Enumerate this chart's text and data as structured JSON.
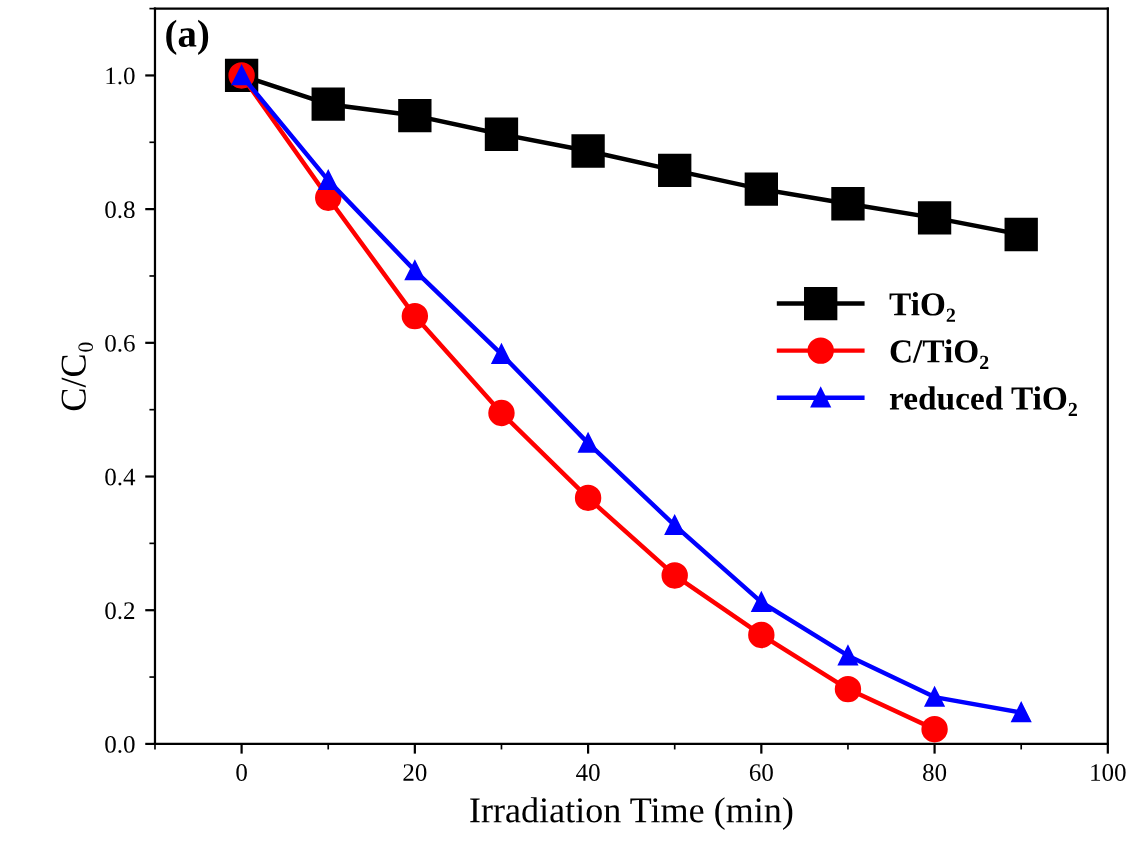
{
  "chart_data": {
    "type": "line",
    "xlabel": "Irradiation Time (min)",
    "ylabel": "C/C₀",
    "annotations": [
      "(a)"
    ],
    "xlim": [
      -10,
      100
    ],
    "ylim": [
      0,
      1.1
    ],
    "xticks": [
      0,
      20,
      40,
      60,
      80,
      100
    ],
    "yticks": [
      {
        "value": 0,
        "label": "0.0"
      },
      {
        "value": 0.2,
        "label": "0.2"
      },
      {
        "value": 0.4,
        "label": "0.4"
      },
      {
        "value": 0.6,
        "label": "0.6"
      },
      {
        "value": 0.8,
        "label": "0.8"
      },
      {
        "value": 1.0,
        "label": "1.0"
      }
    ],
    "grid": false,
    "legend": "right",
    "line_style": "solid",
    "series": [
      {
        "name": "TiO₂",
        "color": "#000000",
        "marker": "square",
        "x": [
          0,
          10,
          20,
          30,
          40,
          50,
          60,
          70,
          80,
          90
        ],
        "values": [
          1.0,
          0.957,
          0.94,
          0.912,
          0.887,
          0.858,
          0.83,
          0.808,
          0.787,
          0.762
        ]
      },
      {
        "name": "C/TiO₂",
        "color": "#ff0000",
        "marker": "circle",
        "x": [
          0,
          10,
          20,
          30,
          40,
          50,
          60,
          70,
          80
        ],
        "values": [
          1.0,
          0.817,
          0.64,
          0.495,
          0.368,
          0.252,
          0.163,
          0.082,
          0.022
        ]
      },
      {
        "name": "reduced TiO₂",
        "color": "#0000ff",
        "marker": "triangle",
        "x": [
          0,
          10,
          20,
          30,
          40,
          50,
          60,
          70,
          80,
          90
        ],
        "values": [
          1.0,
          0.843,
          0.708,
          0.583,
          0.45,
          0.327,
          0.212,
          0.132,
          0.07,
          0.047
        ]
      }
    ]
  }
}
